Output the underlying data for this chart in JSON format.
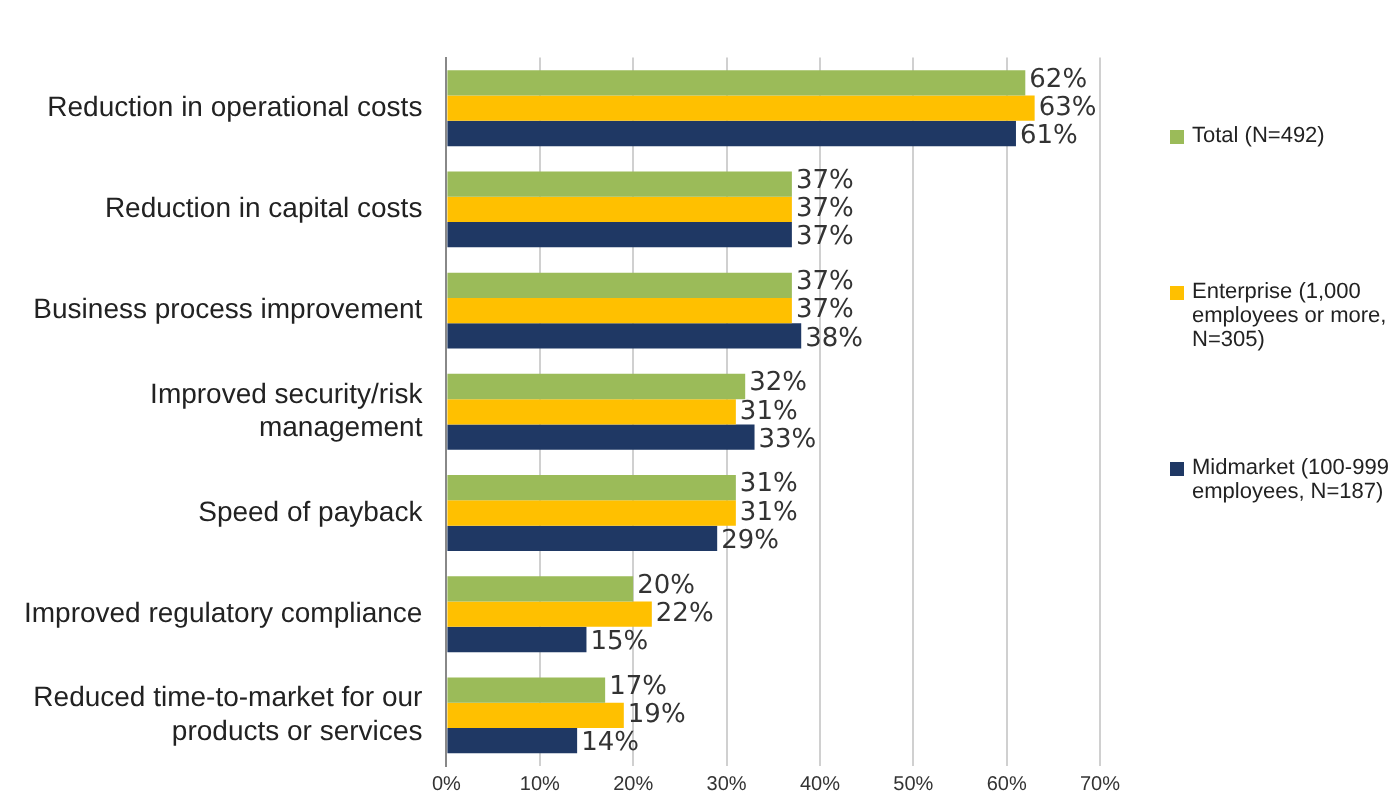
{
  "chart_data": {
    "type": "bar",
    "orientation": "horizontal",
    "categories": [
      "Reduction in operational costs",
      "Reduction in capital costs",
      "Business process improvement",
      "Improved security/risk management",
      "Speed of payback",
      "Improved regulatory compliance",
      "Reduced time-to-market for our products or services"
    ],
    "series": [
      {
        "name": "Total (N=492)",
        "color": "#9bbb59",
        "values": [
          62,
          37,
          37,
          32,
          31,
          20,
          17
        ],
        "value_labels": [
          "62%",
          "37%",
          "37%",
          "32%",
          "31%",
          "20%",
          "17%"
        ]
      },
      {
        "name": "Enterprise (1,000 employees or more, N=305)",
        "color": "#ffc000",
        "values": [
          63,
          37,
          37,
          31,
          31,
          22,
          19
        ],
        "value_labels": [
          "63%",
          "37%",
          "37%",
          "31%",
          "31%",
          "22%",
          "19%"
        ]
      },
      {
        "name": "Midmarket (100-999 employees, N=187)",
        "color": "#1f3864",
        "values": [
          61,
          37,
          38,
          33,
          29,
          15,
          14
        ],
        "value_labels": [
          "61%",
          "37%",
          "38%",
          "33%",
          "29%",
          "15%",
          "14%"
        ]
      }
    ],
    "xlim": [
      0,
      70
    ],
    "xticks": [
      {
        "value": 0,
        "label": "0%"
      },
      {
        "value": 10,
        "label": "10%"
      },
      {
        "value": 20,
        "label": "20%"
      },
      {
        "value": 30,
        "label": "30%"
      },
      {
        "value": 40,
        "label": "40%"
      },
      {
        "value": 50,
        "label": "50%"
      },
      {
        "value": 60,
        "label": "60%"
      },
      {
        "value": 70,
        "label": "70%"
      }
    ],
    "grid": "x",
    "legend": "right"
  }
}
